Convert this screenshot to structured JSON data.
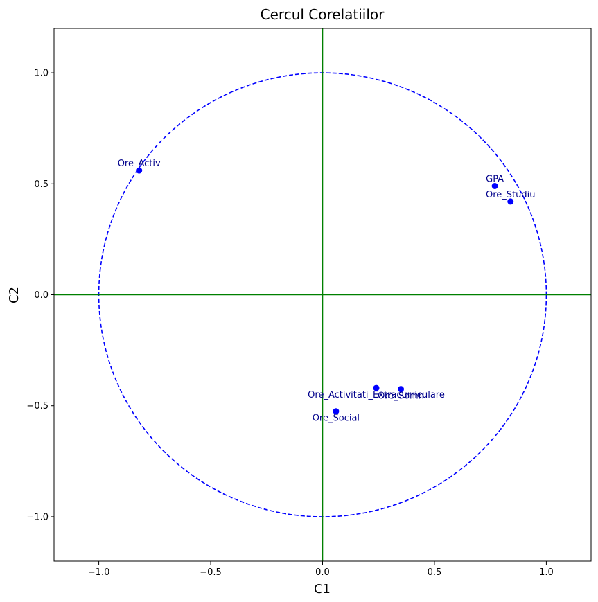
{
  "chart_data": {
    "type": "scatter",
    "title": "Cercul Corelatiilor",
    "xlabel": "C1",
    "ylabel": "C2",
    "xlim": [
      -1.2,
      1.2
    ],
    "ylim": [
      -1.2,
      1.2
    ],
    "x_ticks": [
      -1.0,
      -0.5,
      0.0,
      0.5,
      1.0
    ],
    "x_tick_labels": [
      "−1.0",
      "−0.5",
      "0.0",
      "0.5",
      "1.0"
    ],
    "y_ticks": [
      1.0,
      0.5,
      0.0,
      -0.5,
      -1.0
    ],
    "y_tick_labels": [
      "1.0",
      "0.5",
      "0.0",
      "−0.5",
      "−1.0"
    ],
    "grid": false,
    "circle": {
      "radius": 1.0,
      "style": "dashed",
      "color": "#0000ff"
    },
    "reference_lines": {
      "x": 0,
      "y": 0,
      "color": "#008000"
    },
    "point_color": "#0000ff",
    "label_color": "#00008b",
    "points": [
      {
        "label": "Ore_Activ",
        "x": -0.82,
        "y": 0.56,
        "label_position": "above"
      },
      {
        "label": "GPA",
        "x": 0.77,
        "y": 0.49,
        "label_position": "above"
      },
      {
        "label": "Ore_Studiu",
        "x": 0.84,
        "y": 0.42,
        "label_position": "above"
      },
      {
        "label": "Ore_Activitati_Extracurriculare",
        "x": 0.24,
        "y": -0.42,
        "label_position": "below"
      },
      {
        "label": "Ore_Somn",
        "x": 0.35,
        "y": -0.425,
        "label_position": "below"
      },
      {
        "label": "Ore_Social",
        "x": 0.06,
        "y": -0.525,
        "label_position": "below"
      }
    ]
  }
}
